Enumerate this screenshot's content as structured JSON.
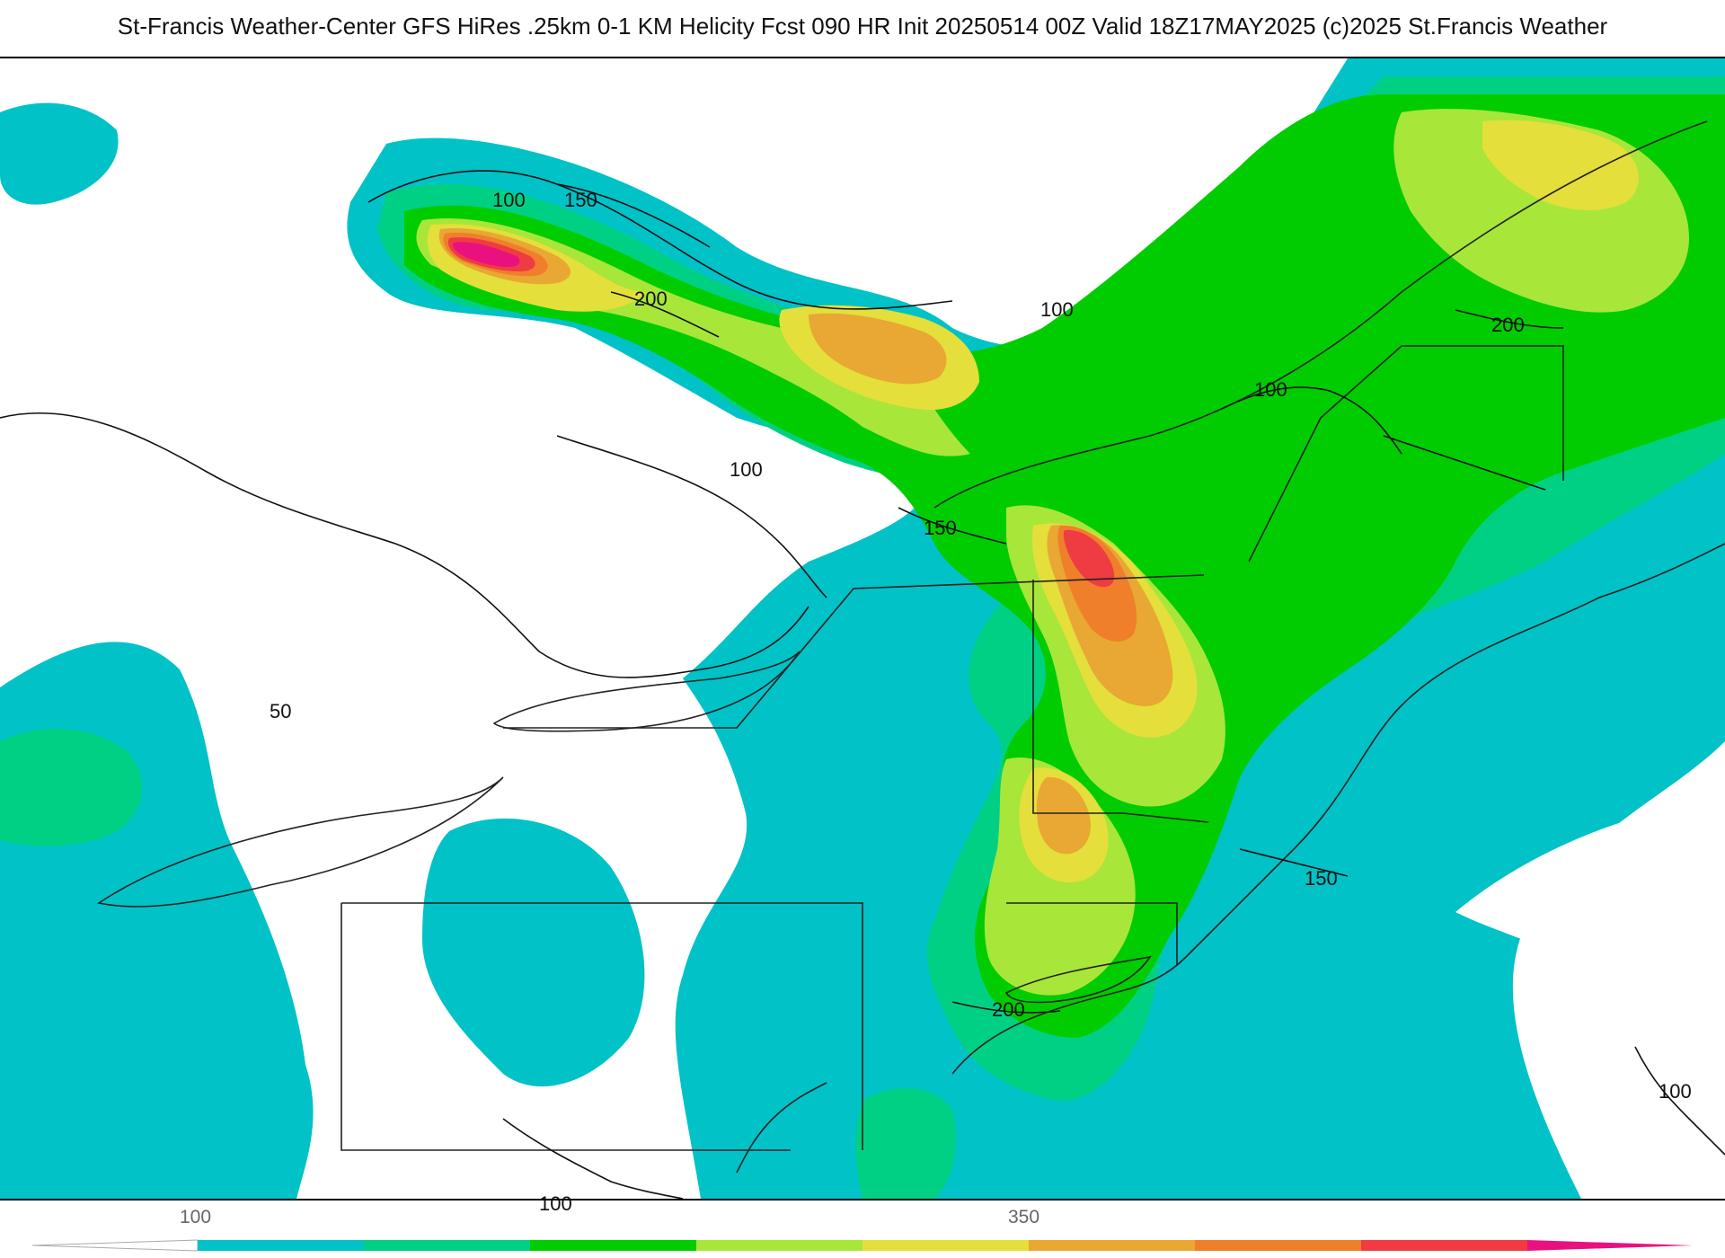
{
  "title": "St-Francis Weather-Center GFS HiRes .25km 0-1 KM Helicity Fcst 090 HR Init 20250514 00Z  Valid 18Z17MAY2025    (c)2025 St.Francis Weather",
  "colors": {
    "background": "#ffffff",
    "contour": "#111111",
    "boundary": "#222222",
    "county": "#b0b0b0",
    "fill_levels": [
      "#00c2c7",
      "#00d084",
      "#00cc00",
      "#a8e63a",
      "#e4df3a",
      "#e8a833",
      "#ef7f2a",
      "#ef3b42",
      "#e8117f"
    ]
  },
  "legend": {
    "tick_labels": [
      "100",
      "350"
    ]
  },
  "contour_labels": [
    "50",
    "100",
    "100",
    "100",
    "100",
    "100",
    "100",
    "150",
    "150",
    "150",
    "200",
    "200",
    "200"
  ]
}
